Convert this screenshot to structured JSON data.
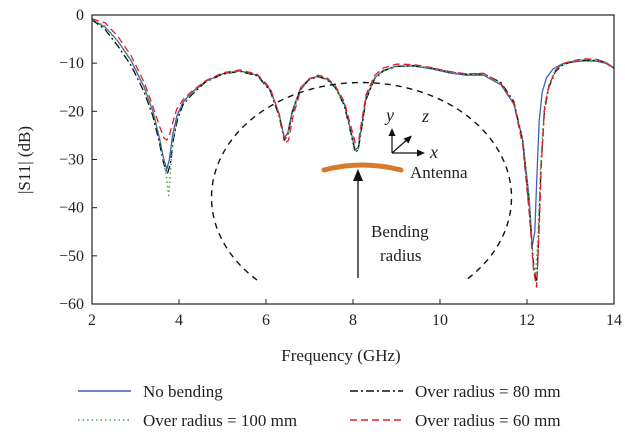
{
  "chart_data": {
    "type": "line",
    "xlabel": "Frequency (GHz)",
    "ylabel": "|S11| (dB)",
    "xlim": [
      2,
      14
    ],
    "ylim": [
      -60,
      0
    ],
    "xticks": [
      2,
      4,
      6,
      8,
      10,
      12,
      14
    ],
    "yticks": [
      0,
      -10,
      -20,
      -30,
      -40,
      -50,
      -60
    ],
    "grid": false,
    "legend_position": "bottom",
    "series": [
      {
        "name": "No bending",
        "color": "#3f5fb7",
        "dash": "solid",
        "x": [
          2.0,
          2.3,
          2.6,
          2.9,
          3.2,
          3.4,
          3.55,
          3.65,
          3.72,
          3.78,
          3.85,
          3.95,
          4.1,
          4.3,
          4.6,
          5.0,
          5.4,
          5.8,
          6.1,
          6.3,
          6.42,
          6.5,
          6.6,
          6.8,
          7.0,
          7.2,
          7.4,
          7.6,
          7.8,
          7.95,
          8.05,
          8.12,
          8.2,
          8.3,
          8.5,
          8.7,
          9.0,
          9.4,
          9.8,
          10.2,
          10.6,
          11.0,
          11.4,
          11.7,
          11.9,
          12.05,
          12.12,
          12.18,
          12.22,
          12.28,
          12.35,
          12.45,
          12.6,
          12.8,
          13.0,
          13.3,
          13.6,
          13.8,
          14.0
        ],
        "y": [
          -1.0,
          -2.5,
          -5.5,
          -9.5,
          -15.0,
          -20.0,
          -25.5,
          -30.0,
          -32.0,
          -30.0,
          -25.0,
          -21.0,
          -18.0,
          -16.0,
          -13.8,
          -12.2,
          -11.6,
          -12.5,
          -15.5,
          -20.5,
          -25.5,
          -24.5,
          -20.0,
          -15.0,
          -13.2,
          -12.7,
          -13.3,
          -15.0,
          -18.5,
          -24.0,
          -28.0,
          -27.5,
          -23.0,
          -17.0,
          -13.0,
          -11.5,
          -10.6,
          -10.6,
          -11.2,
          -12.0,
          -12.5,
          -12.5,
          -14.5,
          -18.5,
          -26.0,
          -38.0,
          -48.0,
          -45.0,
          -35.0,
          -22.0,
          -16.0,
          -13.0,
          -11.2,
          -10.2,
          -9.8,
          -9.5,
          -9.6,
          -10.0,
          -11.0
        ]
      },
      {
        "name": "Over radius = 80 mm",
        "color": "#111111",
        "dash": "dashdot",
        "x": [
          2.0,
          2.3,
          2.6,
          2.9,
          3.2,
          3.4,
          3.55,
          3.65,
          3.73,
          3.8,
          3.87,
          3.97,
          4.1,
          4.3,
          4.6,
          5.0,
          5.4,
          5.8,
          6.1,
          6.3,
          6.42,
          6.5,
          6.6,
          6.8,
          7.0,
          7.2,
          7.4,
          7.6,
          7.8,
          7.95,
          8.05,
          8.12,
          8.2,
          8.3,
          8.5,
          8.7,
          9.0,
          9.4,
          9.8,
          10.2,
          10.6,
          11.0,
          11.4,
          11.7,
          11.9,
          12.05,
          12.15,
          12.22,
          12.26,
          12.32,
          12.4,
          12.5,
          12.65,
          12.8,
          13.0,
          13.3,
          13.6,
          13.8,
          14.0
        ],
        "y": [
          -1.0,
          -3.0,
          -6.5,
          -10.5,
          -16.0,
          -21.0,
          -26.5,
          -31.0,
          -33.0,
          -31.0,
          -26.0,
          -21.5,
          -18.5,
          -16.5,
          -14.0,
          -12.3,
          -11.7,
          -12.6,
          -15.8,
          -21.0,
          -26.0,
          -25.0,
          -20.5,
          -15.2,
          -13.4,
          -12.8,
          -13.4,
          -15.2,
          -18.8,
          -24.5,
          -28.5,
          -28.0,
          -23.5,
          -17.5,
          -13.2,
          -11.6,
          -10.7,
          -10.5,
          -11.0,
          -11.8,
          -12.3,
          -12.2,
          -14.0,
          -18.0,
          -26.0,
          -40.0,
          -52.0,
          -56.0,
          -48.0,
          -32.0,
          -20.0,
          -15.0,
          -11.8,
          -10.5,
          -9.8,
          -9.4,
          -9.4,
          -9.8,
          -11.0
        ]
      },
      {
        "name": "Over radius = 100 mm",
        "color": "#3fae49",
        "dash": "dotted",
        "x": [
          2.0,
          2.3,
          2.6,
          2.9,
          3.2,
          3.4,
          3.55,
          3.65,
          3.72,
          3.76,
          3.8,
          3.85,
          3.95,
          4.1,
          4.3,
          4.6,
          5.0,
          5.4,
          5.8,
          6.1,
          6.3,
          6.42,
          6.5,
          6.6,
          6.8,
          7.0,
          7.2,
          7.4,
          7.6,
          7.8,
          7.95,
          8.05,
          8.12,
          8.2,
          8.3,
          8.5,
          8.7,
          9.0,
          9.4,
          9.8,
          10.2,
          10.6,
          11.0,
          11.4,
          11.7,
          11.9,
          12.05,
          12.15,
          12.2,
          12.25,
          12.32,
          12.4,
          12.5,
          12.65,
          12.8,
          13.0,
          13.3,
          13.6,
          13.8,
          14.0
        ],
        "y": [
          -1.0,
          -2.3,
          -5.5,
          -9.5,
          -15.0,
          -20.0,
          -25.5,
          -30.5,
          -34.0,
          -37.5,
          -33.0,
          -27.0,
          -21.5,
          -18.3,
          -16.2,
          -13.9,
          -12.2,
          -11.6,
          -12.5,
          -15.6,
          -20.6,
          -25.8,
          -24.8,
          -20.2,
          -15.1,
          -13.3,
          -12.7,
          -13.3,
          -15.1,
          -18.6,
          -24.2,
          -28.2,
          -27.8,
          -23.2,
          -17.2,
          -13.1,
          -11.5,
          -10.6,
          -10.5,
          -11.1,
          -11.9,
          -12.4,
          -12.3,
          -14.3,
          -18.3,
          -26.0,
          -39.0,
          -51.0,
          -54.0,
          -46.0,
          -30.0,
          -19.0,
          -14.5,
          -11.5,
          -10.3,
          -9.7,
          -9.3,
          -9.4,
          -9.9,
          -11.0
        ]
      },
      {
        "name": "Over radius = 60 mm",
        "color": "#e0202e",
        "dash": "dashed",
        "x": [
          2.0,
          2.3,
          2.6,
          2.9,
          3.2,
          3.4,
          3.55,
          3.65,
          3.72,
          3.78,
          3.85,
          3.95,
          4.1,
          4.3,
          4.6,
          5.0,
          5.4,
          5.8,
          6.1,
          6.3,
          6.45,
          6.52,
          6.62,
          6.8,
          7.0,
          7.2,
          7.4,
          7.6,
          7.8,
          7.95,
          8.05,
          8.13,
          8.2,
          8.3,
          8.5,
          8.7,
          9.0,
          9.4,
          9.8,
          10.2,
          10.6,
          11.0,
          11.4,
          11.7,
          11.9,
          12.05,
          12.15,
          12.22,
          12.27,
          12.33,
          12.4,
          12.5,
          12.65,
          12.8,
          13.0,
          13.3,
          13.6,
          13.8,
          14.0
        ],
        "y": [
          -0.8,
          -1.6,
          -4.5,
          -8.5,
          -14.0,
          -19.0,
          -23.0,
          -25.5,
          -26.0,
          -25.0,
          -22.5,
          -19.5,
          -17.5,
          -15.8,
          -13.7,
          -12.0,
          -11.4,
          -12.3,
          -15.2,
          -20.5,
          -26.5,
          -26.0,
          -21.0,
          -15.5,
          -13.2,
          -12.5,
          -13.0,
          -14.8,
          -18.0,
          -23.0,
          -26.5,
          -26.0,
          -22.0,
          -16.5,
          -12.5,
          -11.0,
          -10.2,
          -10.3,
          -10.9,
          -11.7,
          -12.2,
          -12.1,
          -14.2,
          -18.5,
          -27.0,
          -41.0,
          -53.0,
          -56.5,
          -47.0,
          -31.0,
          -19.5,
          -14.8,
          -11.5,
          -10.2,
          -9.6,
          -9.1,
          -9.2,
          -9.8,
          -11.0
        ]
      }
    ],
    "annotations": {
      "axis_y": "y",
      "axis_z": "z",
      "axis_x": "x",
      "antenna": "Antenna",
      "bending_1": "Bending",
      "bending_2": "radius"
    }
  }
}
